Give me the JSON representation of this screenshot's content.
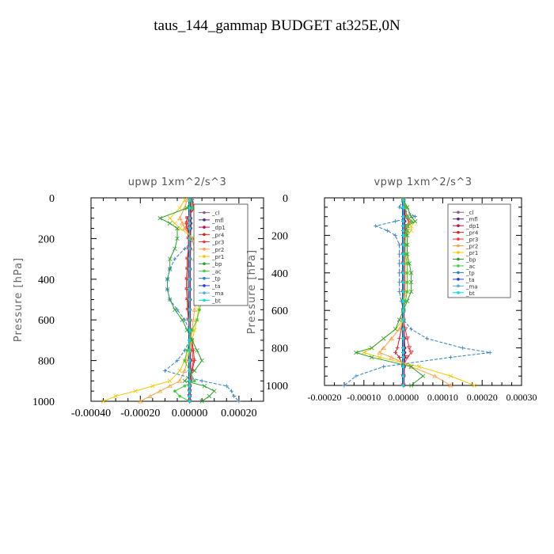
{
  "title": "taus_144_gammap  BUDGET at325E,0N",
  "chart_data": [
    {
      "type": "line",
      "title": "upwp   1xm^2/s^3",
      "ylabel": "Pressure [hPa]",
      "xlabel": "",
      "xlim": [
        -0.0004,
        0.0003
      ],
      "ylim": [
        1000,
        0
      ],
      "xticks": [
        "-0.00040",
        "-0.00020",
        "0.00000",
        "0.00020"
      ],
      "yticks": [
        "0",
        "200",
        "400",
        "600",
        "800",
        "1000"
      ],
      "legend_position": "upper-right",
      "y": [
        10,
        50,
        100,
        125,
        150,
        200,
        250,
        300,
        350,
        400,
        450,
        500,
        550,
        600,
        650,
        700,
        750,
        800,
        850,
        900,
        925,
        950,
        975,
        1000
      ],
      "series": [
        {
          "name": "_cl",
          "color": "#8a5a9a",
          "marker": "o",
          "values": [
            0,
            0,
            0,
            0,
            0,
            0,
            0,
            0,
            0,
            0,
            0,
            0,
            0,
            0,
            0,
            0,
            0,
            0,
            0,
            0,
            0,
            0,
            0,
            0
          ]
        },
        {
          "name": "_mfl",
          "color": "#4b2a8a",
          "marker": "+",
          "values": [
            0,
            0,
            0,
            0,
            0,
            0,
            0,
            0,
            0,
            0,
            0,
            0,
            0,
            0,
            0,
            0,
            0,
            0,
            0,
            0,
            0,
            0,
            0,
            0
          ]
        },
        {
          "name": "_dp1",
          "color": "#b0104a",
          "marker": "o",
          "values": [
            3e-06,
            5e-06,
            5e-06,
            6e-06,
            5e-06,
            4e-06,
            4e-06,
            3e-06,
            3e-06,
            3e-06,
            3e-06,
            3e-06,
            2e-06,
            2e-06,
            2e-06,
            2e-06,
            3e-06,
            4e-06,
            4e-06,
            3e-06,
            3e-06,
            2e-06,
            2e-06,
            2e-06
          ]
        },
        {
          "name": "_pr4",
          "color": "#d42020",
          "marker": "+",
          "values": [
            1e-05,
            2e-05,
            -1e-05,
            -1.5e-05,
            -1e-05,
            -5e-06,
            -5e-06,
            -1e-05,
            -1e-05,
            -1.2e-05,
            -1.2e-05,
            -1e-05,
            -8e-06,
            -5e-06,
            0,
            1e-05,
            1.5e-05,
            2e-05,
            1e-05,
            5e-06,
            0,
            0,
            0,
            0
          ]
        },
        {
          "name": "_pr3",
          "color": "#ff3030",
          "marker": "v",
          "values": [
            8e-06,
            1.5e-05,
            -8e-06,
            -1e-05,
            -8e-06,
            -4e-06,
            -4e-06,
            -8e-06,
            -8e-06,
            -1e-05,
            -1e-05,
            -8e-06,
            -6e-06,
            -4e-06,
            0,
            8e-06,
            1e-05,
            1.5e-05,
            8e-06,
            4e-06,
            0,
            0,
            0,
            0
          ]
        },
        {
          "name": "_pr2",
          "color": "#ffa040",
          "marker": "^",
          "values": [
            -1e-05,
            -2e-05,
            -4e-05,
            -3e-05,
            -2e-05,
            1e-05,
            2e-05,
            2e-05,
            2.5e-05,
            3e-05,
            3e-05,
            2.5e-05,
            2e-05,
            1.5e-05,
            1e-05,
            5e-06,
            0,
            -1e-05,
            -2e-05,
            -4e-05,
            -8e-05,
            -0.00012,
            -0.00016,
            -0.0002
          ]
        },
        {
          "name": "_pr1",
          "color": "#f0c800",
          "marker": "x",
          "values": [
            -2e-05,
            -4e-05,
            -8e-05,
            -6e-05,
            -4e-05,
            2e-05,
            3e-05,
            3e-05,
            4e-05,
            4e-05,
            4.5e-05,
            4e-05,
            3.5e-05,
            3e-05,
            2e-05,
            1e-05,
            0,
            -2e-05,
            -4e-05,
            -8e-05,
            -0.00015,
            -0.00022,
            -0.0003,
            -0.00035
          ]
        },
        {
          "name": "_bp",
          "color": "#2aa02a",
          "marker": "x",
          "values": [
            5e-06,
            -1e-05,
            -0.00012,
            -8e-05,
            -5e-05,
            -5e-05,
            -6e-05,
            -8e-05,
            -8e-05,
            -9e-05,
            -9e-05,
            -8e-05,
            -6e-05,
            -3e-05,
            -1e-05,
            1e-05,
            3e-05,
            5e-05,
            2e-05,
            -2e-05,
            6e-05,
            0.0001,
            8e-05,
            5e-05
          ]
        },
        {
          "name": "_ac",
          "color": "#40d040",
          "marker": "o",
          "values": [
            5e-06,
            1e-05,
            4e-05,
            4e-05,
            3.5e-05,
            3e-05,
            4e-05,
            5e-05,
            5e-05,
            6e-05,
            6e-05,
            5e-05,
            4e-05,
            3e-05,
            1e-05,
            0,
            -1e-05,
            -2e-05,
            0,
            2e-05,
            -2e-05,
            -6e-05,
            -4e-05,
            0
          ]
        },
        {
          "name": "_tp",
          "color": "#3080c0",
          "marker": "+",
          "values": [
            1e-05,
            3e-05,
            5e-05,
            7e-05,
            7e-05,
            2e-05,
            -2e-05,
            -6e-05,
            -8e-05,
            -9e-05,
            -9e-05,
            -8e-05,
            -5e-05,
            -2e-05,
            0,
            0,
            -2e-05,
            -5e-05,
            -0.0001,
            5e-05,
            0.00015,
            0.00017,
            0.00018,
            0.0002
          ]
        },
        {
          "name": "_ta",
          "color": "#2040e0",
          "marker": "+",
          "values": [
            0,
            0,
            0,
            0,
            0,
            0,
            0,
            0,
            0,
            0,
            0,
            0,
            0,
            0,
            0,
            0,
            0,
            0,
            0,
            0,
            0,
            0,
            0,
            0
          ]
        },
        {
          "name": "_ma",
          "color": "#4ab0e0",
          "marker": "-",
          "values": [
            0,
            0,
            0,
            0,
            0,
            0,
            0,
            0,
            0,
            0,
            0,
            0,
            0,
            0,
            0,
            0,
            0,
            0,
            0,
            0,
            0,
            0,
            0,
            0
          ]
        },
        {
          "name": "_bt",
          "color": "#00e0e0",
          "marker": "o",
          "values": [
            0,
            0,
            0,
            0,
            0,
            0,
            0,
            0,
            0,
            0,
            0,
            0,
            0,
            0,
            0,
            0,
            0,
            0,
            0,
            0,
            0,
            0,
            0,
            0
          ]
        }
      ]
    },
    {
      "type": "line",
      "title": "vpwp   1xm^2/s^3",
      "ylabel": "Pressure [hPa]",
      "xlabel": "",
      "xlim": [
        -0.0002,
        0.0003
      ],
      "ylim": [
        1000,
        0
      ],
      "xticks": [
        "-0.00020",
        "-0.00010",
        "0.00000",
        "0.00010",
        "0.00020",
        "0.00030"
      ],
      "yticks": [
        "0",
        "200",
        "400",
        "600",
        "800",
        "1000"
      ],
      "legend_position": "upper-right",
      "y": [
        10,
        50,
        100,
        125,
        150,
        175,
        200,
        250,
        300,
        350,
        400,
        450,
        500,
        550,
        600,
        650,
        700,
        750,
        800,
        825,
        850,
        900,
        950,
        1000
      ],
      "series": [
        {
          "name": "_cl",
          "color": "#8a5a9a",
          "marker": "o",
          "values": [
            0,
            0,
            0,
            0,
            0,
            0,
            0,
            0,
            0,
            0,
            0,
            0,
            0,
            0,
            0,
            0,
            0,
            0,
            0,
            0,
            0,
            0,
            0,
            0
          ]
        },
        {
          "name": "_mfl",
          "color": "#4b2a8a",
          "marker": "+",
          "values": [
            0,
            0,
            0,
            0,
            0,
            0,
            0,
            0,
            0,
            0,
            0,
            0,
            0,
            0,
            0,
            0,
            0,
            0,
            0,
            0,
            0,
            0,
            0,
            0
          ]
        },
        {
          "name": "_dp1",
          "color": "#b0104a",
          "marker": "o",
          "values": [
            2e-06,
            3e-06,
            4e-06,
            4e-06,
            3e-06,
            3e-06,
            2e-06,
            2e-06,
            2e-06,
            2e-06,
            2e-06,
            2e-06,
            2e-06,
            2e-06,
            2e-06,
            2e-06,
            2e-06,
            3e-06,
            4e-06,
            4e-06,
            4e-06,
            3e-06,
            2e-06,
            2e-06
          ]
        },
        {
          "name": "_pr4",
          "color": "#d42020",
          "marker": "+",
          "values": [
            0,
            5e-06,
            1e-05,
            2e-05,
            1e-05,
            5e-06,
            5e-06,
            0,
            0,
            0,
            0,
            0,
            0,
            0,
            0,
            0,
            -5e-06,
            -1e-05,
            -1.5e-05,
            -2e-05,
            -1e-05,
            0,
            0,
            0
          ]
        },
        {
          "name": "_pr3",
          "color": "#ff3030",
          "marker": "v",
          "values": [
            0,
            4e-06,
            8e-06,
            1.5e-05,
            8e-06,
            4e-06,
            4e-06,
            0,
            0,
            0,
            0,
            0,
            0,
            0,
            0,
            0,
            5e-06,
            1e-05,
            1.5e-05,
            2e-05,
            1e-05,
            0,
            0,
            0
          ]
        },
        {
          "name": "_pr2",
          "color": "#ffa040",
          "marker": "^",
          "values": [
            0,
            5e-06,
            1e-05,
            2e-05,
            1e-05,
            1e-05,
            5e-06,
            5e-06,
            5e-06,
            5e-06,
            5e-06,
            5e-06,
            5e-06,
            0,
            0,
            0,
            -1e-05,
            -3e-05,
            -5e-05,
            -6e-05,
            -3e-05,
            2e-05,
            8e-05,
            0.00012
          ]
        },
        {
          "name": "_pr1",
          "color": "#f0c800",
          "marker": "x",
          "values": [
            0,
            1e-05,
            2e-05,
            3e-05,
            2e-05,
            2e-05,
            1e-05,
            1e-05,
            1e-05,
            1e-05,
            1e-05,
            1e-05,
            1e-05,
            0,
            0,
            0,
            -2e-05,
            -5e-05,
            -8e-05,
            -0.0001,
            -6e-05,
            4e-05,
            0.00012,
            0.00018
          ]
        },
        {
          "name": "_bp",
          "color": "#2aa02a",
          "marker": "x",
          "values": [
            0,
            1e-05,
            2e-05,
            3e-05,
            1e-05,
            1e-05,
            1e-05,
            1e-05,
            1e-05,
            1.5e-05,
            2e-05,
            2e-05,
            2e-05,
            1e-05,
            0,
            -1e-05,
            -2e-05,
            -5e-05,
            -8e-05,
            -0.00012,
            -8e-05,
            2e-05,
            5e-05,
            2e-05
          ]
        },
        {
          "name": "_ac",
          "color": "#40d040",
          "marker": "o",
          "values": [
            0,
            5e-06,
            1e-05,
            2e-05,
            1e-05,
            1e-05,
            5e-06,
            5e-06,
            5e-06,
            1e-05,
            1e-05,
            1e-05,
            1e-05,
            5e-06,
            0,
            0,
            0,
            0,
            0,
            0,
            0,
            0,
            0,
            0
          ]
        },
        {
          "name": "_tp",
          "color": "#3080c0",
          "marker": "+",
          "values": [
            0,
            -1e-05,
            3e-05,
            -2e-05,
            -7e-05,
            -4e-05,
            -2e-05,
            -1e-05,
            -1e-05,
            -1e-05,
            -1e-05,
            -1e-05,
            -1e-05,
            -5e-06,
            0,
            0,
            2e-05,
            6e-05,
            0.00015,
            0.00022,
            0.00012,
            -5e-05,
            -0.00012,
            -0.00015
          ]
        },
        {
          "name": "_ta",
          "color": "#2040e0",
          "marker": "+",
          "values": [
            0,
            0,
            0,
            0,
            0,
            0,
            0,
            0,
            0,
            0,
            0,
            0,
            0,
            0,
            0,
            0,
            0,
            0,
            0,
            0,
            0,
            0,
            0,
            0
          ]
        },
        {
          "name": "_ma",
          "color": "#4ab0e0",
          "marker": "-",
          "values": [
            0,
            0,
            0,
            0,
            0,
            0,
            0,
            0,
            0,
            0,
            0,
            0,
            0,
            0,
            0,
            0,
            0,
            0,
            0,
            0,
            0,
            0,
            0,
            0
          ]
        },
        {
          "name": "_bt",
          "color": "#00e0e0",
          "marker": "o",
          "values": [
            0,
            0,
            0,
            0,
            0,
            0,
            0,
            0,
            0,
            0,
            0,
            0,
            0,
            0,
            0,
            0,
            0,
            0,
            0,
            0,
            0,
            0,
            0,
            0
          ]
        }
      ]
    }
  ]
}
